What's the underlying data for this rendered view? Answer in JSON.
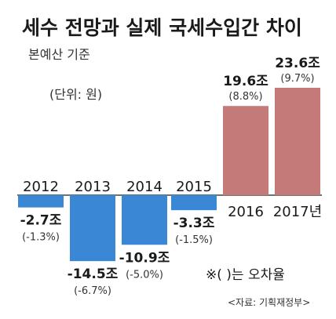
{
  "chart_data": {
    "type": "bar",
    "title": "세수 전망과 실제 국세수입간 차이",
    "subtitle": "본예산 기준",
    "unit_label": "(단위: 원)",
    "categories": [
      "2012",
      "2013",
      "2014",
      "2015",
      "2016",
      "2017년"
    ],
    "values": [
      -2.7,
      -14.5,
      -10.9,
      -3.3,
      19.6,
      23.6
    ],
    "value_labels": [
      "-2.7조",
      "-14.5조",
      "-10.9조",
      "-3.3조",
      "19.6조",
      "23.6조"
    ],
    "percent_labels": [
      "(-1.3%)",
      "(-6.7%)",
      "(-5.0%)",
      "(-1.5%)",
      "(8.8%)",
      "(9.7%)"
    ],
    "colors": {
      "negative": "#3a87d6",
      "positive": "#c47a78"
    },
    "note": "※(    )는 오차율",
    "source": "<자료: 기획재정부>"
  }
}
